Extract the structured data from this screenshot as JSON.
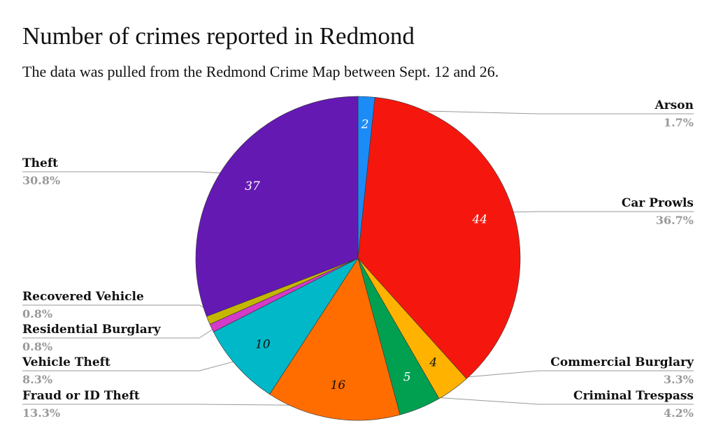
{
  "chart_data": {
    "type": "pie",
    "title": "Number of crimes reported in Redmond",
    "subtitle": "The data was pulled from the Redmond Crime Map between Sept. 12 and 26.",
    "slices": [
      {
        "label": "Arson",
        "value": 2,
        "percent": "1.7%",
        "color": "#1b8bf7",
        "value_color": "#ffffff"
      },
      {
        "label": "Car Prowls",
        "value": 44,
        "percent": "36.7%",
        "color": "#f5170e",
        "value_color": "#ffffff"
      },
      {
        "label": "Commercial Burglary",
        "value": 4,
        "percent": "3.3%",
        "color": "#ffb300",
        "value_color": "#111111"
      },
      {
        "label": "Criminal Trespass",
        "value": 5,
        "percent": "4.2%",
        "color": "#00a050",
        "value_color": "#ffffff"
      },
      {
        "label": "Fraud or ID Theft",
        "value": 16,
        "percent": "13.3%",
        "color": "#ff6d00",
        "value_color": "#111111"
      },
      {
        "label": "Vehicle Theft",
        "value": 10,
        "percent": "8.3%",
        "color": "#00b8c8",
        "value_color": "#111111"
      },
      {
        "label": "Residential Burglary",
        "value": 1,
        "percent": "0.8%",
        "color": "#d43bc8",
        "value_color": "#ffffff"
      },
      {
        "label": "Recovered Vehicle",
        "value": 1,
        "percent": "0.8%",
        "color": "#c5b600",
        "value_color": "#ffffff"
      },
      {
        "label": "Theft",
        "value": 37,
        "percent": "30.8%",
        "color": "#6419b3",
        "value_color": "#ffffff"
      }
    ],
    "show_values_for": [
      0,
      1,
      2,
      3,
      4,
      5,
      8
    ]
  }
}
